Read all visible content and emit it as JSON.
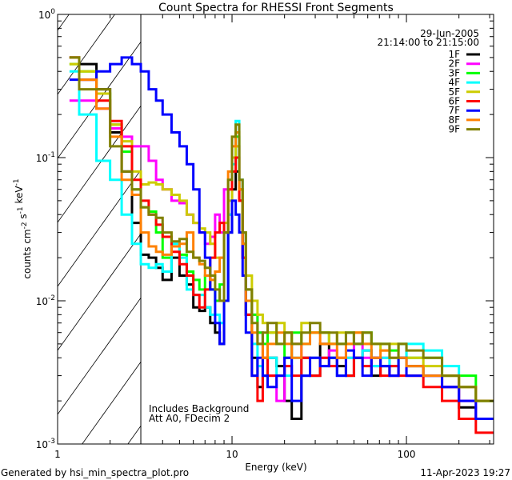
{
  "chart_data": {
    "type": "line",
    "title": "Count Spectra for RHESSI Front Segments",
    "xlabel": "Energy (keV)",
    "ylabel": "counts cm-2 s-1 keV-1",
    "xscale": "log",
    "yscale": "log",
    "xlim": [
      1,
      316
    ],
    "ylim": [
      0.001,
      1
    ],
    "x_ticks": [
      {
        "v": 1,
        "label": "1"
      },
      {
        "v": 10,
        "label": "10"
      },
      {
        "v": 100,
        "label": "100"
      }
    ],
    "y_ticks": [
      {
        "v": 1,
        "base": "10",
        "exp": "0"
      },
      {
        "v": 0.1,
        "base": "10",
        "exp": "-1"
      },
      {
        "v": 0.01,
        "base": "10",
        "exp": "-2"
      },
      {
        "v": 0.001,
        "base": "10",
        "exp": "-3"
      }
    ],
    "legend_position": "top-right",
    "date": "29-Jun-2005",
    "time_range": "21:14:00 to 21:15:00",
    "annotations": [
      "Includes Background",
      "Att A0, FDecim 2"
    ],
    "shaded_region_below_keV": 3,
    "bin_edges_keV": [
      1.17,
      1.33,
      1.67,
      2.0,
      2.33,
      2.67,
      3.0,
      3.33,
      3.67,
      4.0,
      4.5,
      5.0,
      5.5,
      6.0,
      6.5,
      7.0,
      7.5,
      8.0,
      8.5,
      9.0,
      9.5,
      10.0,
      10.5,
      11.0,
      11.5,
      12.0,
      13,
      14,
      15,
      16,
      18,
      20,
      22,
      25,
      28,
      32,
      36,
      40,
      45,
      50,
      56,
      63,
      71,
      80,
      90,
      100,
      125,
      160,
      200,
      250,
      316
    ],
    "series": [
      {
        "name": "1F",
        "color": "#000000",
        "values": [
          0.5,
          0.45,
          0.3,
          0.15,
          0.08,
          0.035,
          0.021,
          0.02,
          0.017,
          0.014,
          0.02,
          0.015,
          0.013,
          0.009,
          0.0085,
          0.009,
          0.007,
          0.006,
          0.005,
          0.01,
          0.03,
          0.06,
          0.08,
          0.05,
          0.02,
          0.008,
          0.004,
          0.0025,
          0.003,
          0.004,
          0.0035,
          0.002,
          0.0015,
          0.004,
          0.003,
          0.005,
          0.004,
          0.0035,
          0.003,
          0.004,
          0.0045,
          0.003,
          0.0035,
          0.003,
          0.004,
          0.0035,
          0.003,
          0.0025,
          0.0018,
          0.0015
        ]
      },
      {
        "name": "2F",
        "color": "#ff00ff",
        "values": [
          0.25,
          0.25,
          0.22,
          0.16,
          0.14,
          0.12,
          0.12,
          0.095,
          0.07,
          0.06,
          0.05,
          0.048,
          0.04,
          0.035,
          0.03,
          0.025,
          0.028,
          0.04,
          0.03,
          0.06,
          0.04,
          0.1,
          0.12,
          0.05,
          0.02,
          0.012,
          0.008,
          0.006,
          0.004,
          0.003,
          0.002,
          0.004,
          0.005,
          0.003,
          0.004,
          0.004,
          0.0045,
          0.003,
          0.004,
          0.005,
          0.004,
          0.0035,
          0.004,
          0.003,
          0.004,
          0.003,
          0.003,
          0.0025,
          0.002,
          0.0015
        ]
      },
      {
        "name": "3F",
        "color": "#00ff00",
        "values": [
          0.45,
          0.4,
          0.28,
          0.17,
          0.11,
          0.06,
          0.045,
          0.042,
          0.03,
          0.02,
          0.024,
          0.021,
          0.016,
          0.014,
          0.012,
          0.015,
          0.012,
          0.01,
          0.013,
          0.03,
          0.06,
          0.1,
          0.14,
          0.06,
          0.025,
          0.012,
          0.008,
          0.006,
          0.005,
          0.006,
          0.005,
          0.004,
          0.006,
          0.005,
          0.006,
          0.006,
          0.005,
          0.005,
          0.006,
          0.005,
          0.006,
          0.005,
          0.005,
          0.0045,
          0.005,
          0.004,
          0.004,
          0.003,
          0.003,
          0.002
        ]
      },
      {
        "name": "4F",
        "color": "#00ffff",
        "values": [
          0.4,
          0.2,
          0.095,
          0.07,
          0.04,
          0.025,
          0.018,
          0.017,
          0.018,
          0.016,
          0.025,
          0.02,
          0.012,
          0.011,
          0.011,
          0.009,
          0.008,
          0.008,
          0.007,
          0.01,
          0.04,
          0.09,
          0.18,
          0.07,
          0.03,
          0.01,
          0.005,
          0.0035,
          0.003,
          0.004,
          0.003,
          0.003,
          0.004,
          0.003,
          0.004,
          0.0035,
          0.004,
          0.003,
          0.004,
          0.004,
          0.0045,
          0.0035,
          0.004,
          0.0035,
          0.004,
          0.005,
          0.0045,
          0.0035,
          0.0025,
          0.002
        ]
      },
      {
        "name": "5F",
        "color": "#cccc00",
        "values": [
          0.45,
          0.4,
          0.28,
          0.17,
          0.13,
          0.08,
          0.065,
          0.067,
          0.065,
          0.06,
          0.055,
          0.05,
          0.04,
          0.035,
          0.032,
          0.03,
          0.025,
          0.02,
          0.02,
          0.035,
          0.05,
          0.1,
          0.12,
          0.06,
          0.03,
          0.015,
          0.01,
          0.008,
          0.007,
          0.006,
          0.007,
          0.006,
          0.005,
          0.007,
          0.006,
          0.006,
          0.005,
          0.006,
          0.005,
          0.006,
          0.005,
          0.005,
          0.0045,
          0.005,
          0.004,
          0.004,
          0.0035,
          0.003,
          0.0025,
          0.002
        ]
      },
      {
        "name": "6F",
        "color": "#ff0000",
        "values": [
          0.5,
          0.35,
          0.25,
          0.18,
          0.12,
          0.07,
          0.05,
          0.04,
          0.034,
          0.028,
          0.022,
          0.018,
          0.015,
          0.011,
          0.009,
          0.012,
          0.02,
          0.03,
          0.035,
          0.03,
          0.06,
          0.08,
          0.1,
          0.05,
          0.02,
          0.008,
          0.003,
          0.002,
          0.004,
          0.003,
          0.003,
          0.0035,
          0.003,
          0.004,
          0.003,
          0.004,
          0.0035,
          0.004,
          0.003,
          0.004,
          0.0035,
          0.004,
          0.003,
          0.0035,
          0.003,
          0.003,
          0.0025,
          0.002,
          0.0015,
          0.0012
        ]
      },
      {
        "name": "7F",
        "color": "#0000ff",
        "values": [
          0.35,
          0.35,
          0.4,
          0.45,
          0.5,
          0.45,
          0.4,
          0.3,
          0.25,
          0.2,
          0.15,
          0.12,
          0.09,
          0.06,
          0.03,
          0.02,
          0.012,
          0.007,
          0.005,
          0.01,
          0.03,
          0.05,
          0.04,
          0.03,
          0.015,
          0.006,
          0.003,
          0.004,
          0.003,
          0.0025,
          0.003,
          0.004,
          0.002,
          0.003,
          0.004,
          0.0035,
          0.004,
          0.003,
          0.0045,
          0.004,
          0.003,
          0.004,
          0.0035,
          0.003,
          0.004,
          0.003,
          0.003,
          0.0025,
          0.002,
          0.0015
        ]
      },
      {
        "name": "8F",
        "color": "#ff8000",
        "values": [
          0.5,
          0.35,
          0.22,
          0.14,
          0.07,
          0.055,
          0.03,
          0.024,
          0.022,
          0.021,
          0.024,
          0.025,
          0.03,
          0.02,
          0.018,
          0.015,
          0.014,
          0.016,
          0.02,
          0.03,
          0.08,
          0.12,
          0.15,
          0.06,
          0.025,
          0.01,
          0.006,
          0.005,
          0.004,
          0.005,
          0.006,
          0.005,
          0.004,
          0.005,
          0.006,
          0.005,
          0.005,
          0.004,
          0.005,
          0.006,
          0.005,
          0.004,
          0.0045,
          0.004,
          0.004,
          0.0035,
          0.003,
          0.003,
          0.0025,
          0.002
        ]
      },
      {
        "name": "9F",
        "color": "#808000",
        "values": [
          0.5,
          0.3,
          0.3,
          0.12,
          0.08,
          0.06,
          0.045,
          0.04,
          0.038,
          0.03,
          0.026,
          0.027,
          0.022,
          0.02,
          0.019,
          0.017,
          0.015,
          0.012,
          0.01,
          0.03,
          0.07,
          0.14,
          0.17,
          0.07,
          0.03,
          0.012,
          0.007,
          0.005,
          0.006,
          0.007,
          0.005,
          0.006,
          0.005,
          0.006,
          0.007,
          0.006,
          0.006,
          0.005,
          0.006,
          0.005,
          0.006,
          0.005,
          0.005,
          0.004,
          0.005,
          0.0045,
          0.004,
          0.003,
          0.0025,
          0.002
        ]
      }
    ]
  },
  "footer": {
    "generated_by": "Generated by hsi_min_spectra_plot.pro",
    "timestamp": "11-Apr-2023 19:27"
  }
}
